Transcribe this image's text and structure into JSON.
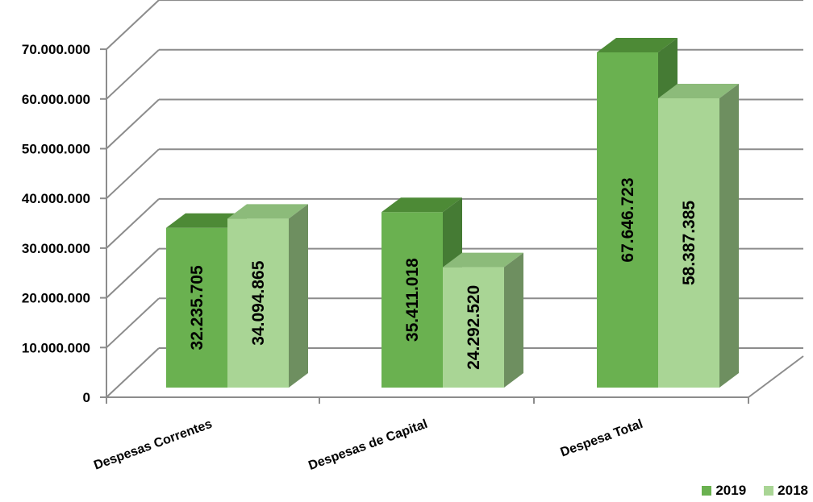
{
  "chart_data": {
    "type": "bar",
    "categories": [
      "Despesas Correntes",
      "Despesas de Capital",
      "Despesa Total"
    ],
    "series": [
      {
        "name": "2019",
        "values": [
          32235705,
          35411018,
          67646723
        ],
        "labels": [
          "32.235.705",
          "35.411.018",
          "67.646.723"
        ],
        "color": "#6ab150",
        "top_color": "#4d8a36",
        "side_color": "#457b34"
      },
      {
        "name": "2018",
        "values": [
          34094865,
          24292520,
          58387385
        ],
        "labels": [
          "34.094.865",
          "24.292.520",
          "58.387.385"
        ],
        "color": "#a9d595",
        "top_color": "#8cbb7a",
        "side_color": "#6e8f60"
      }
    ],
    "y_ticks": [
      {
        "value": 0,
        "label": "0"
      },
      {
        "value": 10000000,
        "label": "10.000.000"
      },
      {
        "value": 20000000,
        "label": "20.000.000"
      },
      {
        "value": 30000000,
        "label": "30.000.000"
      },
      {
        "value": 40000000,
        "label": "40.000.000"
      },
      {
        "value": 50000000,
        "label": "50.000.000"
      },
      {
        "value": 60000000,
        "label": "60.000.000"
      },
      {
        "value": 70000000,
        "label": "70.000.000"
      }
    ],
    "ylim": [
      0,
      70000000
    ],
    "grid": true,
    "three_d": true,
    "legend_position": "bottom-right",
    "title": "",
    "xlabel": "",
    "ylabel": ""
  },
  "legend": {
    "items": [
      {
        "label": "2019",
        "color": "#6ab150"
      },
      {
        "label": "2018",
        "color": "#a9d595"
      }
    ]
  }
}
